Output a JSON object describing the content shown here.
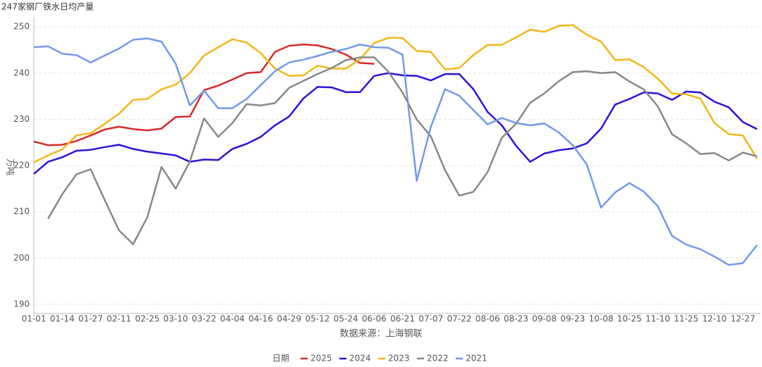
{
  "chart_data": {
    "type": "line",
    "title": "247家钢厂铁水日均产量",
    "y_label": "万吨",
    "x_label": "数据来源：上海钢联",
    "legend_title": "日期",
    "categories": [
      "01-01",
      null,
      "01-14",
      null,
      "01-27",
      null,
      "02-11",
      null,
      "02-25",
      null,
      "03-10",
      null,
      "03-22",
      null,
      "04-04",
      null,
      "04-16",
      null,
      "04-29",
      null,
      "05-12",
      null,
      "05-24",
      null,
      "06-06",
      null,
      "06-21",
      null,
      "07-07",
      null,
      "07-22",
      null,
      "08-06",
      null,
      "08-23",
      null,
      "09-08",
      null,
      "09-23",
      null,
      "10-08",
      null,
      "10-25",
      null,
      "11-10",
      null,
      "11-25",
      null,
      "12-10",
      null,
      "12-27",
      null
    ],
    "ylim": [
      188,
      252
    ],
    "yticks": [
      190,
      200,
      210,
      220,
      230,
      240,
      250
    ],
    "grid": true,
    "legend": "bottom",
    "series": [
      {
        "name": "2025",
        "color": "#d42a2a",
        "values": [
          225.2,
          224.4,
          224.5,
          225.3,
          226.5,
          227.8,
          228.4,
          227.9,
          227.6,
          228.0,
          230.5,
          230.6,
          236.3,
          237.3,
          238.6,
          240.0,
          240.2,
          244.6,
          245.9,
          246.2,
          246.0,
          245.2,
          244.0,
          242.2,
          242.0,
          null,
          null,
          null,
          null,
          null,
          null,
          null,
          null,
          null,
          null,
          null,
          null,
          null,
          null,
          null,
          null,
          null,
          null,
          null,
          null,
          null,
          null,
          null,
          null,
          null,
          null,
          null
        ]
      },
      {
        "name": "2024",
        "color": "#2a14d8",
        "values": [
          218.2,
          220.8,
          221.8,
          223.2,
          223.4,
          224.0,
          224.5,
          223.6,
          223.0,
          222.6,
          222.2,
          220.8,
          221.3,
          221.2,
          223.6,
          224.7,
          226.2,
          228.7,
          230.6,
          234.5,
          237.0,
          236.9,
          235.9,
          235.9,
          239.4,
          240.0,
          239.5,
          239.4,
          238.4,
          239.8,
          239.8,
          236.5,
          231.6,
          228.7,
          224.3,
          220.8,
          222.6,
          223.3,
          223.7,
          224.8,
          228.0,
          233.2,
          234.4,
          235.8,
          235.6,
          234.2,
          236.0,
          235.8,
          233.8,
          232.6,
          229.4,
          227.9
        ]
      },
      {
        "name": "2023",
        "color": "#f0b81a",
        "values": [
          220.7,
          222.2,
          223.5,
          226.5,
          227.0,
          229.0,
          231.2,
          234.2,
          234.4,
          236.5,
          237.5,
          240.0,
          243.8,
          245.6,
          247.3,
          246.6,
          244.3,
          241.0,
          239.4,
          239.5,
          241.6,
          241.0,
          241.0,
          243.0,
          246.5,
          247.6,
          247.6,
          244.8,
          244.6,
          240.8,
          241.1,
          243.9,
          246.1,
          246.1,
          247.7,
          249.4,
          248.9,
          250.2,
          250.4,
          248.3,
          246.8,
          242.8,
          243.0,
          241.3,
          238.8,
          235.6,
          235.4,
          234.5,
          229.2,
          226.8,
          226.5,
          221.5
        ]
      },
      {
        "name": "2022",
        "color": "#888888",
        "values": [
          null,
          208.5,
          213.8,
          218.1,
          219.2,
          212.5,
          206.0,
          203.0,
          208.8,
          219.7,
          215.0,
          220.9,
          230.2,
          226.2,
          229.2,
          233.3,
          233.0,
          233.5,
          236.8,
          238.3,
          239.8,
          241.1,
          242.8,
          243.4,
          243.4,
          240.3,
          235.8,
          230.0,
          226.3,
          219.0,
          213.5,
          214.3,
          218.6,
          226.0,
          229.0,
          233.6,
          235.6,
          238.2,
          240.2,
          240.4,
          240.0,
          240.2,
          238.2,
          236.5,
          232.8,
          226.8,
          224.8,
          222.5,
          222.7,
          221.1,
          222.8,
          222.0
        ]
      },
      {
        "name": "2021",
        "color": "#7299e8",
        "values": [
          245.6,
          245.8,
          244.2,
          243.9,
          242.3,
          243.8,
          245.3,
          247.2,
          247.5,
          246.8,
          242.0,
          233.0,
          236.2,
          232.4,
          232.4,
          234.4,
          237.4,
          240.4,
          242.3,
          242.9,
          243.7,
          244.6,
          245.2,
          246.2,
          245.6,
          245.5,
          244.0,
          216.7,
          228.4,
          236.5,
          235.1,
          232.0,
          228.9,
          230.3,
          229.2,
          228.7,
          229.1,
          227.2,
          224.4,
          220.2,
          210.9,
          214.2,
          216.2,
          214.4,
          211.2,
          204.8,
          202.9,
          201.9,
          200.3,
          198.5,
          198.9,
          202.8
        ]
      }
    ]
  }
}
